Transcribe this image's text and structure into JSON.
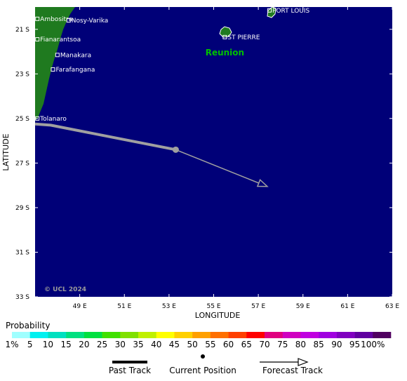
{
  "map": {
    "lon_range": [
      47,
      63
    ],
    "lat_range": [
      20.0,
      33.0
    ],
    "lon_ticks": [
      "49 E",
      "51 E",
      "53 E",
      "55 E",
      "57 E",
      "59 E",
      "61 E",
      "63 E"
    ],
    "lat_ticks": [
      "21 S",
      "23 S",
      "25 S",
      "27 S",
      "29 S",
      "31 S",
      "33 S"
    ],
    "xlabel": "LONGITUDE",
    "ylabel": "LATITUDE",
    "copyright": "© UCL 2024",
    "ocean_color": "#000078",
    "land_color": "#1f7a1f",
    "cities": [
      {
        "name": "Ambositra",
        "lon": 47.1,
        "lat": 20.53
      },
      {
        "name": "Nosy-Varika",
        "lon": 48.5,
        "lat": 20.6
      },
      {
        "name": "Fianarantsoa",
        "lon": 47.1,
        "lat": 21.45
      },
      {
        "name": "Manakara",
        "lon": 48.0,
        "lat": 22.15
      },
      {
        "name": "Farafangana",
        "lon": 47.8,
        "lat": 22.8
      },
      {
        "name": "Tolanaro",
        "lon": 47.1,
        "lat": 25.0
      },
      {
        "name": "ST PIERRE",
        "lon": 55.5,
        "lat": 21.35
      },
      {
        "name": "PORT LOUIS",
        "lon": 57.5,
        "lat": 20.15
      }
    ],
    "island_label": {
      "name": "Reunion",
      "lon": 55.5,
      "lat": 22.05
    },
    "past_track": [
      [
        47.0,
        25.25
      ],
      [
        47.7,
        25.3
      ],
      [
        53.3,
        26.4
      ]
    ],
    "current_position": [
      53.3,
      26.4
    ],
    "forecast_track": [
      [
        53.3,
        26.4
      ],
      [
        57.4,
        28.05
      ]
    ],
    "track_color": "#a0a0a0"
  },
  "legend": {
    "title": "Probability",
    "labels": [
      "1%",
      "5",
      "10",
      "15",
      "20",
      "25",
      "30",
      "35",
      "40",
      "45",
      "50",
      "55",
      "60",
      "65",
      "70",
      "75",
      "80",
      "85",
      "90",
      "95",
      "100%"
    ],
    "colors": [
      "#a0ffff",
      "#00f0f0",
      "#00e0c0",
      "#00e080",
      "#00e040",
      "#40e000",
      "#80e000",
      "#c0f000",
      "#ffff00",
      "#ffd000",
      "#ffa000",
      "#ff7000",
      "#ff4000",
      "#ff0000",
      "#e00080",
      "#d000c0",
      "#c000e0",
      "#a000e0",
      "#8000c0",
      "#6000a0",
      "#500060"
    ],
    "past_track_label": "Past Track",
    "current_position_label": "Current Position",
    "forecast_track_label": "Forecast Track"
  }
}
